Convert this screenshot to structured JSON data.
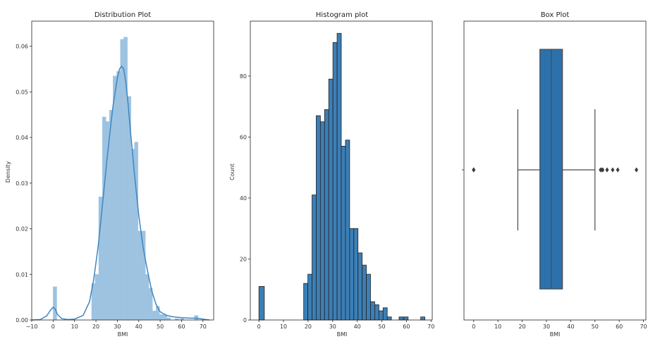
{
  "chart_data": [
    {
      "type": "histogram-kde",
      "title": "Distribution Plot",
      "xlabel": "BMI",
      "ylabel": "Density",
      "xlim": [
        -10,
        75
      ],
      "ylim": [
        0,
        0.0655
      ],
      "xticks": [
        -10,
        0,
        10,
        20,
        30,
        40,
        50,
        60,
        70
      ],
      "yticks": [
        0.0,
        0.01,
        0.02,
        0.03,
        0.04,
        0.05,
        0.06
      ],
      "ytick_labels": [
        "0.00",
        "0.01",
        "0.02",
        "0.03",
        "0.04",
        "0.05",
        "0.06"
      ],
      "bar_color": "#9dc3e1",
      "line_color": "#3f86c1",
      "bins": [
        {
          "x0": 0,
          "x1": 1.7,
          "y": 0.0073
        },
        {
          "x0": 18.0,
          "x1": 19.6,
          "y": 0.008
        },
        {
          "x0": 19.6,
          "x1": 21.3,
          "y": 0.01
        },
        {
          "x0": 21.3,
          "x1": 23.0,
          "y": 0.027
        },
        {
          "x0": 23.0,
          "x1": 24.7,
          "y": 0.0445
        },
        {
          "x0": 24.7,
          "x1": 26.3,
          "y": 0.0435
        },
        {
          "x0": 26.3,
          "x1": 28.0,
          "y": 0.046
        },
        {
          "x0": 28.0,
          "x1": 29.7,
          "y": 0.0535
        },
        {
          "x0": 29.7,
          "x1": 31.4,
          "y": 0.0545
        },
        {
          "x0": 31.4,
          "x1": 33.0,
          "y": 0.0615
        },
        {
          "x0": 33.0,
          "x1": 34.7,
          "y": 0.062
        },
        {
          "x0": 34.7,
          "x1": 36.4,
          "y": 0.049
        },
        {
          "x0": 36.4,
          "x1": 38.0,
          "y": 0.0375
        },
        {
          "x0": 38.0,
          "x1": 39.7,
          "y": 0.039
        },
        {
          "x0": 39.7,
          "x1": 41.4,
          "y": 0.0195
        },
        {
          "x0": 41.4,
          "x1": 43.1,
          "y": 0.0195
        },
        {
          "x0": 43.1,
          "x1": 44.7,
          "y": 0.01
        },
        {
          "x0": 44.7,
          "x1": 46.4,
          "y": 0.007
        },
        {
          "x0": 46.4,
          "x1": 48.1,
          "y": 0.002
        },
        {
          "x0": 48.1,
          "x1": 49.7,
          "y": 0.003
        },
        {
          "x0": 49.7,
          "x1": 51.4,
          "y": 0.0012
        },
        {
          "x0": 51.4,
          "x1": 53.1,
          "y": 0.0012
        },
        {
          "x0": 53.1,
          "x1": 54.8,
          "y": 0.0005
        },
        {
          "x0": 57.0,
          "x1": 58.7,
          "y": 0.0003
        },
        {
          "x0": 59.4,
          "x1": 61.1,
          "y": 0.0003
        },
        {
          "x0": 66.0,
          "x1": 67.7,
          "y": 0.001
        }
      ],
      "kde": [
        [
          -10,
          0
        ],
        [
          -6,
          0.0001
        ],
        [
          -3,
          0.0009
        ],
        [
          -1,
          0.0023
        ],
        [
          0,
          0.0028
        ],
        [
          1,
          0.0024
        ],
        [
          2,
          0.0012
        ],
        [
          4,
          0.0003
        ],
        [
          7,
          0.0001
        ],
        [
          10,
          0.0002
        ],
        [
          14,
          0.001
        ],
        [
          17,
          0.004
        ],
        [
          19,
          0.009
        ],
        [
          21,
          0.016
        ],
        [
          23,
          0.025
        ],
        [
          25,
          0.0345
        ],
        [
          27,
          0.043
        ],
        [
          28,
          0.047
        ],
        [
          30,
          0.053
        ],
        [
          31,
          0.055
        ],
        [
          32,
          0.0556
        ],
        [
          33,
          0.055
        ],
        [
          34,
          0.052
        ],
        [
          35,
          0.0475
        ],
        [
          36,
          0.042
        ],
        [
          37,
          0.037
        ],
        [
          38,
          0.032
        ],
        [
          40,
          0.023
        ],
        [
          42,
          0.016
        ],
        [
          44,
          0.011
        ],
        [
          46,
          0.0065
        ],
        [
          48,
          0.0035
        ],
        [
          50,
          0.0018
        ],
        [
          53,
          0.001
        ],
        [
          56,
          0.0007
        ],
        [
          60,
          0.0005
        ],
        [
          64,
          0.0004
        ],
        [
          67,
          0.0004
        ],
        [
          70,
          0.0002
        ],
        [
          73,
          0.0
        ]
      ]
    },
    {
      "type": "histogram",
      "title": "Histogram plot",
      "xlabel": "BMI",
      "ylabel": "Count",
      "xlim": [
        -3.5,
        70.5
      ],
      "ylim": [
        0,
        98
      ],
      "xticks": [
        0,
        10,
        20,
        30,
        40,
        50,
        60,
        70
      ],
      "yticks": [
        0,
        20,
        40,
        60,
        80
      ],
      "bar_color": "#3c7fb6",
      "edge_color": "#222222",
      "bins": [
        {
          "x0": 0,
          "x1": 2.2,
          "y": 11
        },
        {
          "x0": 18.2,
          "x1": 19.9,
          "y": 12
        },
        {
          "x0": 19.9,
          "x1": 21.6,
          "y": 15
        },
        {
          "x0": 21.6,
          "x1": 23.3,
          "y": 41
        },
        {
          "x0": 23.3,
          "x1": 25.0,
          "y": 67
        },
        {
          "x0": 25.0,
          "x1": 26.7,
          "y": 65
        },
        {
          "x0": 26.7,
          "x1": 28.4,
          "y": 69
        },
        {
          "x0": 28.4,
          "x1": 30.1,
          "y": 79
        },
        {
          "x0": 30.1,
          "x1": 31.8,
          "y": 91
        },
        {
          "x0": 31.8,
          "x1": 33.5,
          "y": 94
        },
        {
          "x0": 33.5,
          "x1": 35.2,
          "y": 57
        },
        {
          "x0": 35.2,
          "x1": 36.9,
          "y": 59
        },
        {
          "x0": 36.9,
          "x1": 38.6,
          "y": 30
        },
        {
          "x0": 38.6,
          "x1": 40.3,
          "y": 30
        },
        {
          "x0": 40.3,
          "x1": 42.0,
          "y": 22
        },
        {
          "x0": 42.0,
          "x1": 43.7,
          "y": 18
        },
        {
          "x0": 43.7,
          "x1": 45.4,
          "y": 15
        },
        {
          "x0": 45.4,
          "x1": 47.1,
          "y": 6
        },
        {
          "x0": 47.1,
          "x1": 48.8,
          "y": 5
        },
        {
          "x0": 48.8,
          "x1": 50.5,
          "y": 3
        },
        {
          "x0": 50.5,
          "x1": 52.2,
          "y": 4
        },
        {
          "x0": 52.2,
          "x1": 53.9,
          "y": 1
        },
        {
          "x0": 57.0,
          "x1": 58.7,
          "y": 1
        },
        {
          "x0": 59.0,
          "x1": 60.7,
          "y": 1
        },
        {
          "x0": 65.8,
          "x1": 67.5,
          "y": 1
        }
      ]
    },
    {
      "type": "box",
      "title": "Box Plot",
      "xlabel": "BMI",
      "xlim": [
        -4,
        71
      ],
      "xticks": [
        0,
        10,
        20,
        30,
        40,
        50,
        60,
        70
      ],
      "box_color": "#2c71ab",
      "line_color": "#4a4a4a",
      "whisker_low": 18.2,
      "q1": 27.3,
      "median": 32.0,
      "q3": 36.6,
      "whisker_high": 50.0,
      "outliers": [
        0,
        0,
        0,
        52.3,
        52.9,
        53.2,
        55.0,
        57.3,
        59.4,
        67.1
      ]
    }
  ]
}
